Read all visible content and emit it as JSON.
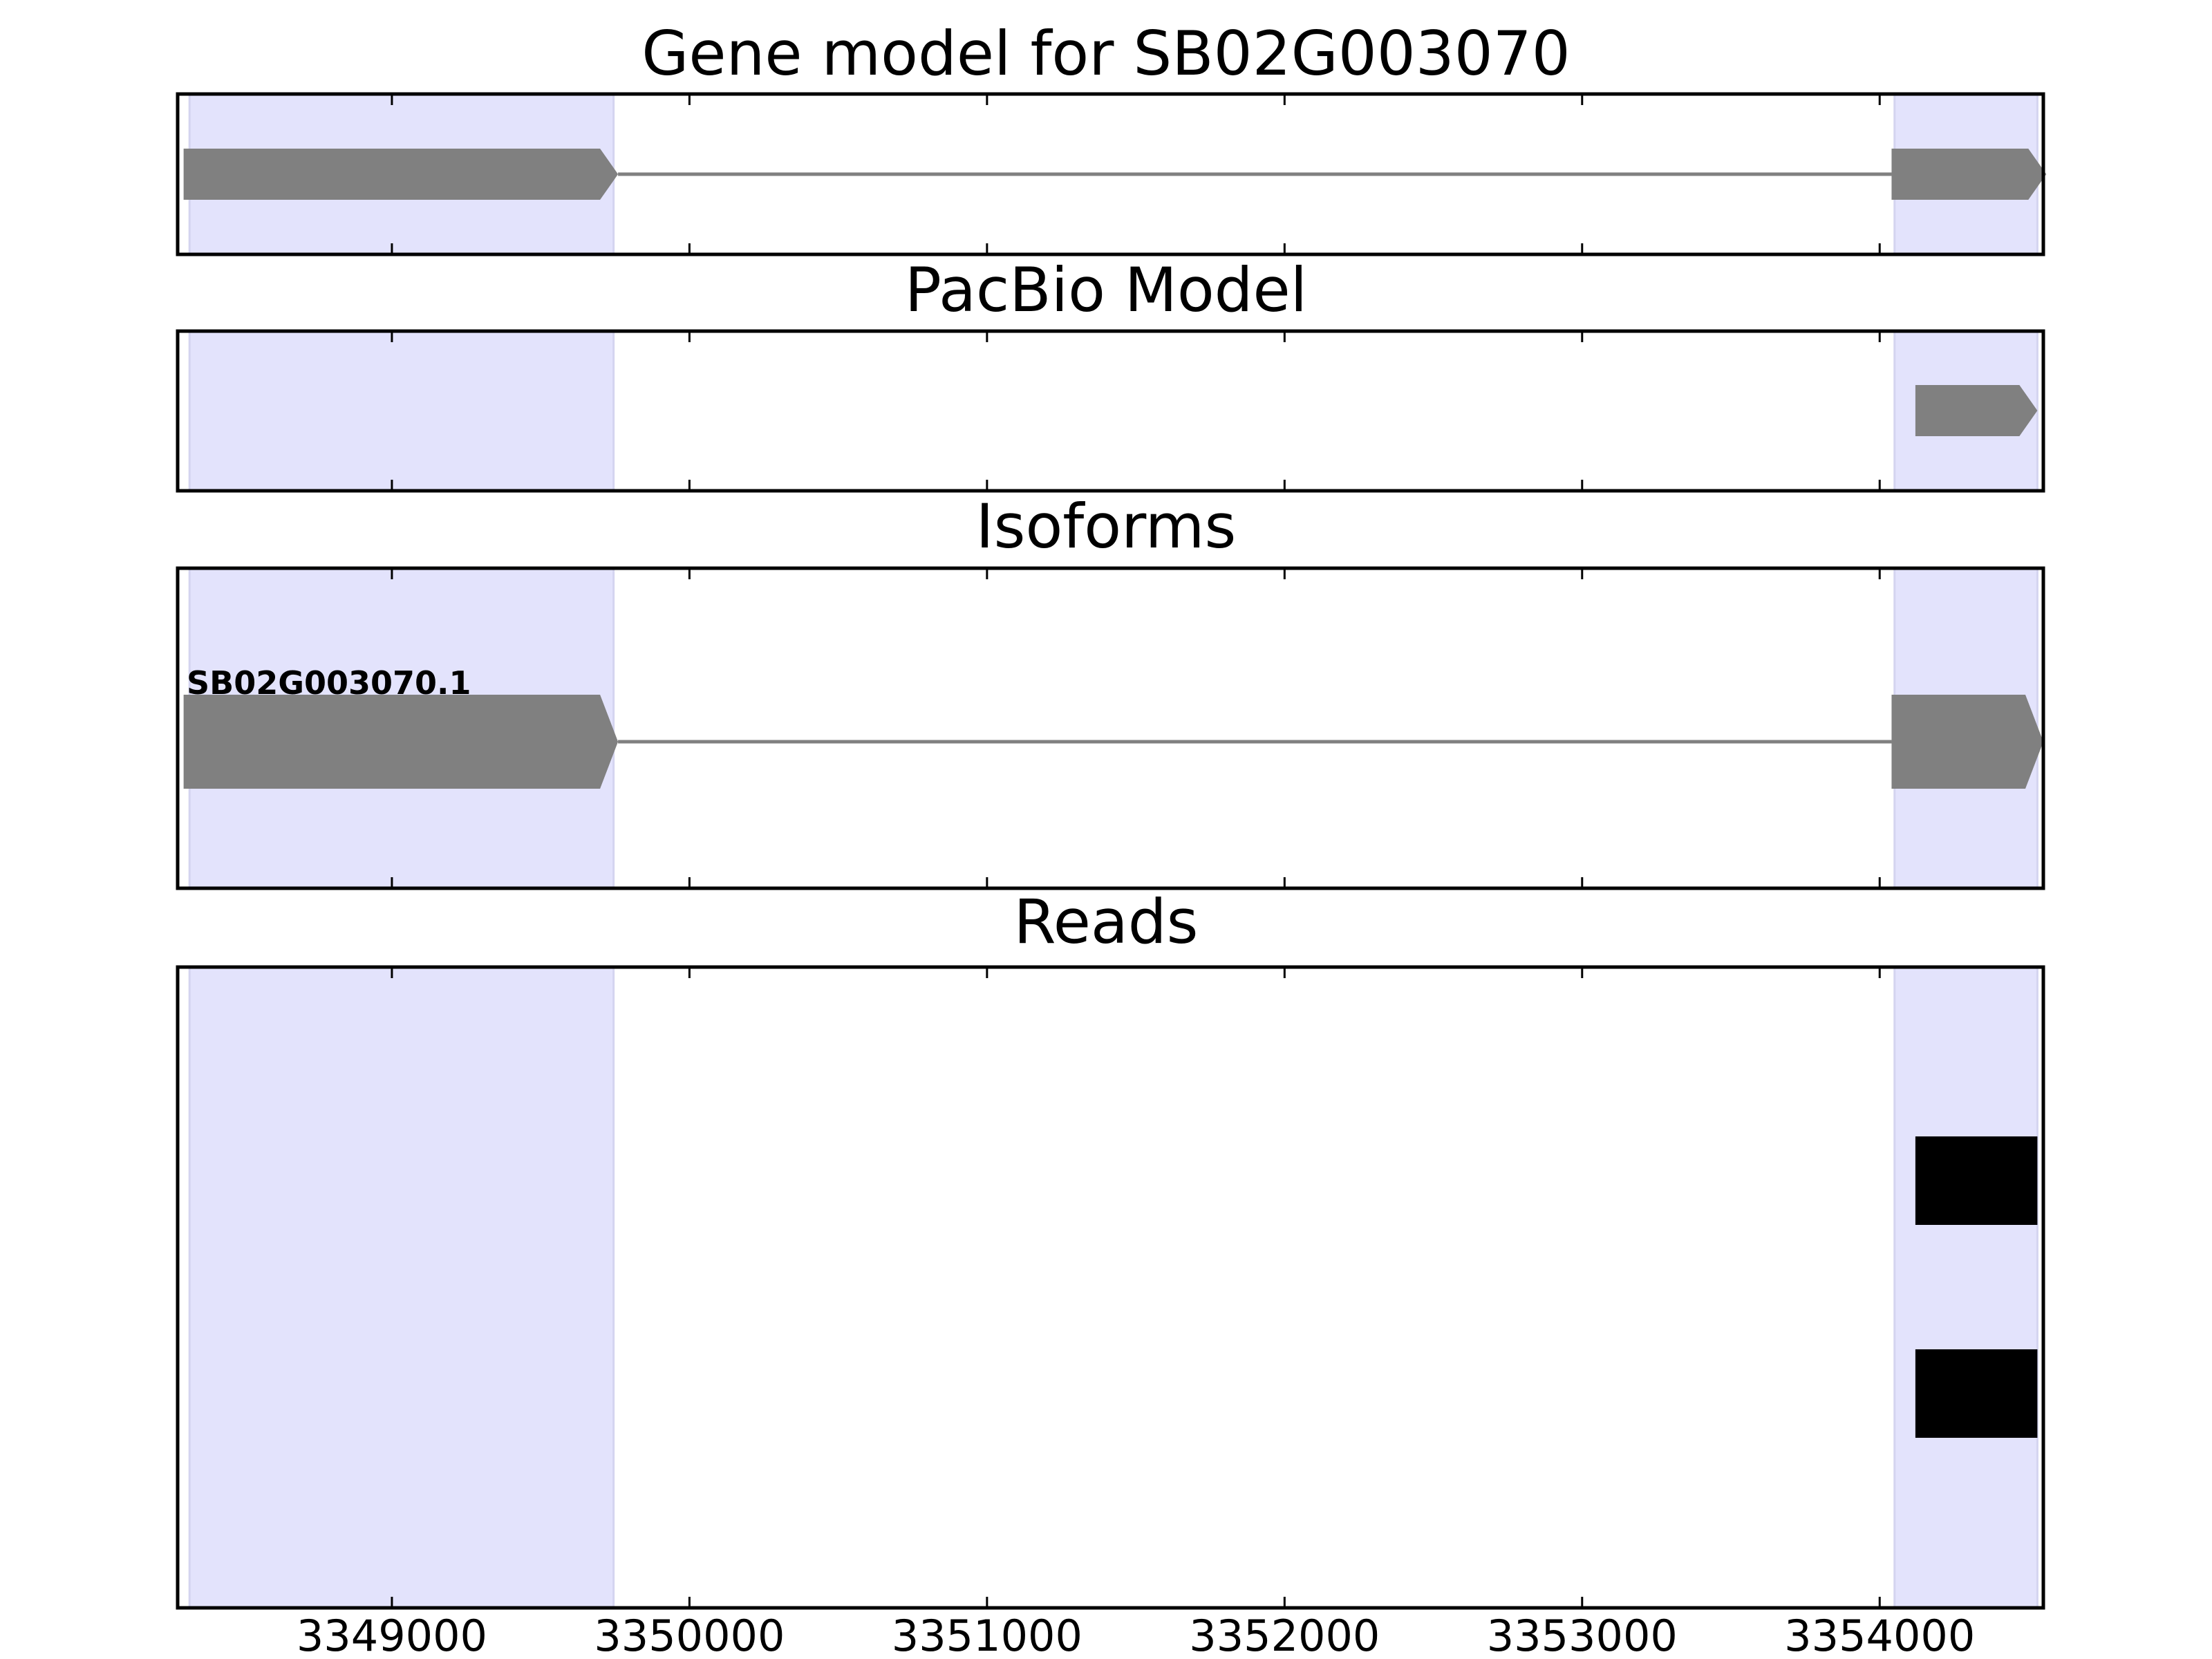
{
  "chart_data": {
    "type": "gene_model",
    "x_range": [
      3348280,
      3354550
    ],
    "x_ticks": [
      3349000,
      3350000,
      3351000,
      3352000,
      3353000,
      3354000
    ],
    "x_tick_labels": [
      "3349000",
      "3350000",
      "3351000",
      "3352000",
      "3353000",
      "3354000"
    ],
    "highlight_regions": [
      {
        "start": 3348320,
        "end": 3349745
      },
      {
        "start": 3354050,
        "end": 3354530
      }
    ],
    "colors": {
      "highlight": "#e3e3fc",
      "exon": "#808080",
      "intron": "#808080",
      "read": "#000000",
      "axes": "#000000"
    },
    "panels": [
      {
        "id": "gene-model",
        "title": "Gene model for SB02G003070",
        "strand": "+",
        "exons": [
          {
            "start": 3348300,
            "end": 3349760
          },
          {
            "start": 3354040,
            "end": 3354560
          }
        ],
        "introns": [
          {
            "start": 3349760,
            "end": 3354040
          }
        ]
      },
      {
        "id": "pacbio-model",
        "title": "PacBio Model",
        "strand": "+",
        "exons": [
          {
            "start": 3354120,
            "end": 3354530
          }
        ],
        "introns": []
      },
      {
        "id": "isoforms",
        "title": "Isoforms",
        "isoforms": [
          {
            "label": "SB02G003070.1",
            "strand": "+",
            "exons": [
              {
                "start": 3348300,
                "end": 3349760
              },
              {
                "start": 3354040,
                "end": 3354550
              }
            ],
            "introns": [
              {
                "start": 3349760,
                "end": 3354040
              }
            ]
          }
        ]
      },
      {
        "id": "reads",
        "title": "Reads",
        "reads": [
          {
            "start": 3354120,
            "end": 3354530
          },
          {
            "start": 3354120,
            "end": 3354530
          }
        ]
      }
    ]
  }
}
